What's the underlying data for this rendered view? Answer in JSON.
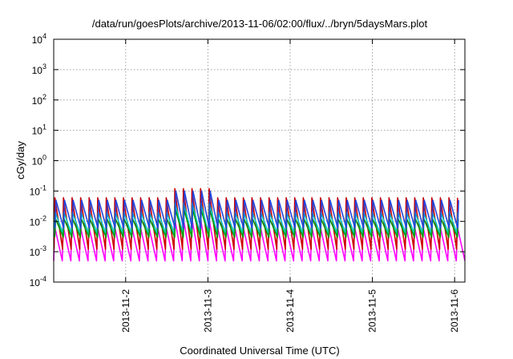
{
  "chart_data": {
    "type": "line",
    "title": "/data/run/goesPlots/archive/2013-11-06/02:00/flux/../bryn/5daysMars.plot",
    "xlabel": "Coordinated Universal Time (UTC)",
    "ylabel": "cGy/day",
    "yscale": "log",
    "ylim": [
      0.0001,
      10000
    ],
    "xlim": [
      "2013-11-01T03:00",
      "2013-11-06T03:00"
    ],
    "x_ticks": [
      "2013-11-2",
      "2013-11-3",
      "2013-11-4",
      "2013-11-5",
      "2013-11-6"
    ],
    "x_tick_dates": [
      "2013-11-02T00:00",
      "2013-11-03T00:00",
      "2013-11-04T00:00",
      "2013-11-05T00:00",
      "2013-11-06T00:00"
    ],
    "y_ticks": [
      {
        "base": "10",
        "exp": "-4"
      },
      {
        "base": "10",
        "exp": "-3"
      },
      {
        "base": "10",
        "exp": "-2"
      },
      {
        "base": "10",
        "exp": "-1"
      },
      {
        "base": "10",
        "exp": "0"
      },
      {
        "base": "10",
        "exp": "1"
      },
      {
        "base": "10",
        "exp": "2"
      },
      {
        "base": "10",
        "exp": "3"
      },
      {
        "base": "10",
        "exp": "4"
      }
    ],
    "grid": true,
    "legend": "none",
    "cycle_period_hours": 2.5,
    "series": [
      {
        "color": "#ff00ff",
        "peak": 0.007,
        "trough": 0.0005
      },
      {
        "color": "#cc0000",
        "peak": 0.06,
        "trough": 0.0012
      },
      {
        "color": "#00cccc",
        "peak": 0.02,
        "trough": 0.004
      },
      {
        "color": "#009900",
        "peak": 0.012,
        "trough": 0.003
      },
      {
        "color": "#2244dd",
        "peak": 0.05,
        "trough": 0.006
      }
    ],
    "enhanced_interval": [
      "2013-11-02T13:00",
      "2013-11-03T02:00"
    ],
    "enhancement_factor": 2
  }
}
